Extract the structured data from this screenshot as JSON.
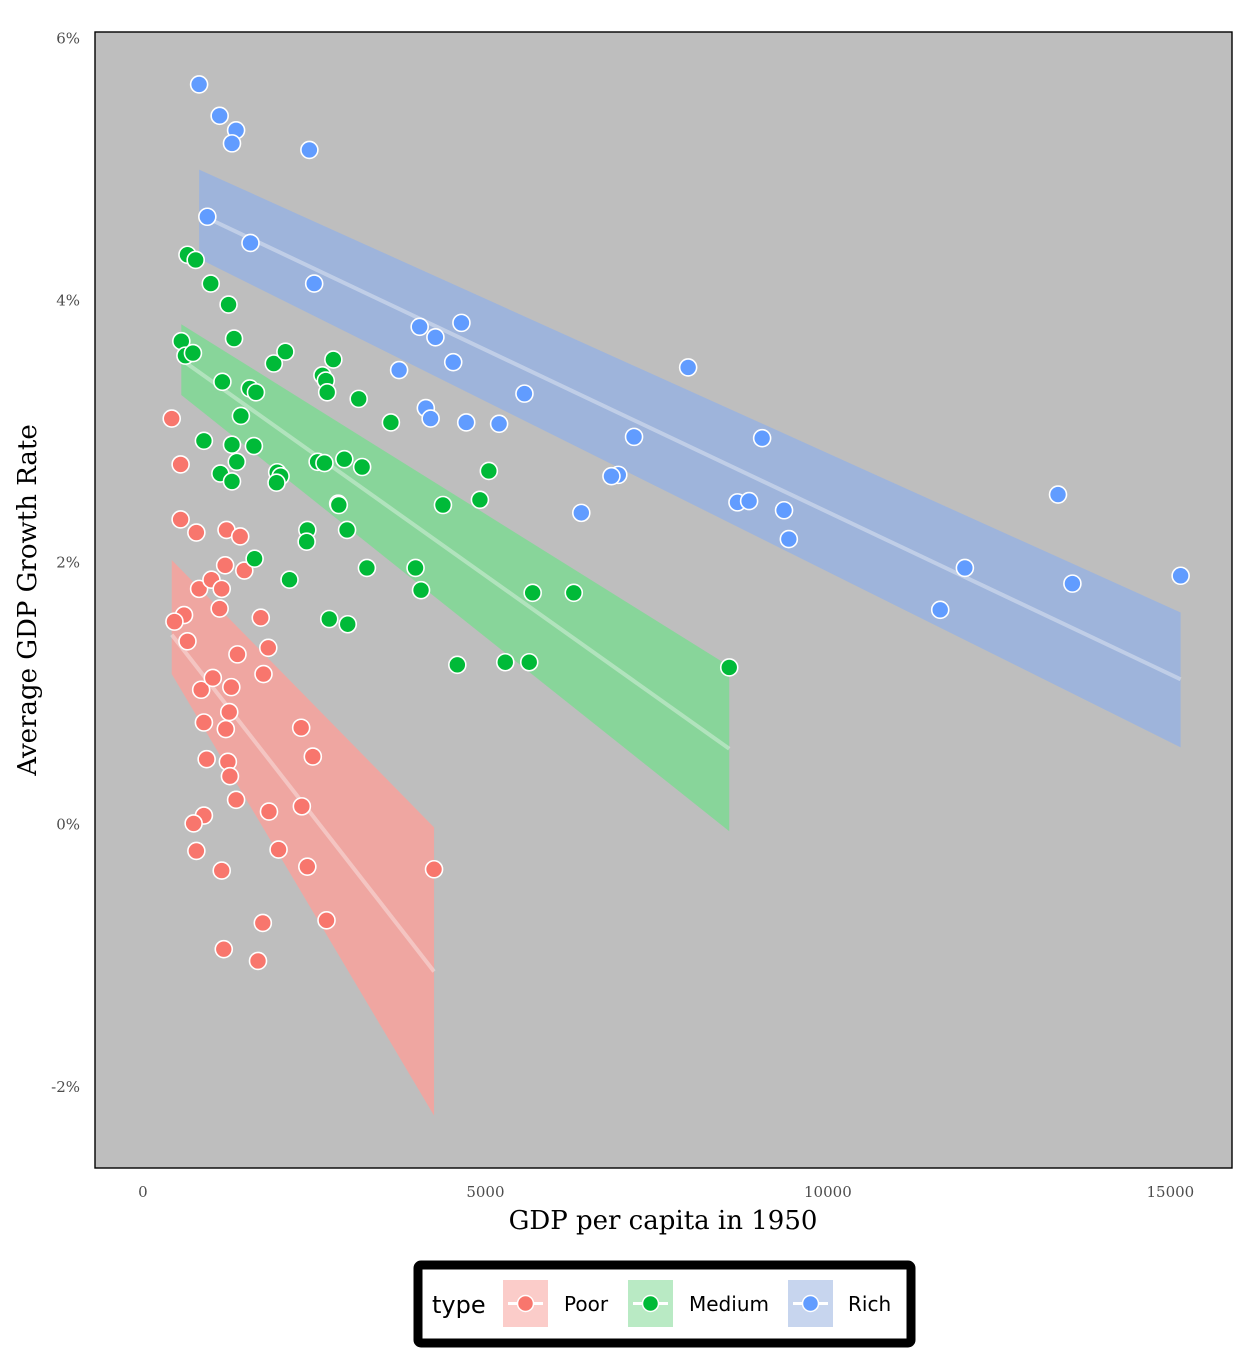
{
  "chart_data": {
    "type": "scatter",
    "title": "",
    "xlabel": "GDP per capita in 1950",
    "ylabel": "Average GDP Growth Rate",
    "xlim": [
      -700,
      15900
    ],
    "ylim": [
      -2.62,
      6.05
    ],
    "x_ticks": [
      0,
      5000,
      10000,
      15000
    ],
    "x_tick_labels": [
      "0",
      "5000",
      "10000",
      "15000"
    ],
    "y_ticks": [
      -2,
      0,
      2,
      4,
      6
    ],
    "y_tick_labels": [
      "-2%",
      "0%",
      "2%",
      "4%",
      "6%"
    ],
    "grid": false,
    "panel_background": "#bebebe",
    "legend": {
      "title": "type",
      "position": "bottom",
      "items": [
        "Poor",
        "Medium",
        "Rich"
      ]
    },
    "series": [
      {
        "name": "Poor",
        "color": "#f8766d",
        "fill_color": "#f8a29c",
        "points": [
          [
            420,
            3.1
          ],
          [
            550,
            2.75
          ],
          [
            550,
            2.33
          ],
          [
            600,
            1.6
          ],
          [
            460,
            1.55
          ],
          [
            650,
            1.4
          ],
          [
            780,
            2.23
          ],
          [
            820,
            1.8
          ],
          [
            1000,
            1.87
          ],
          [
            1150,
            1.8
          ],
          [
            1120,
            1.65
          ],
          [
            1200,
            1.98
          ],
          [
            1220,
            2.25
          ],
          [
            1420,
            2.2
          ],
          [
            1480,
            1.94
          ],
          [
            1720,
            1.58
          ],
          [
            1830,
            1.35
          ],
          [
            1760,
            1.15
          ],
          [
            1380,
            1.3
          ],
          [
            850,
            1.03
          ],
          [
            1020,
            1.12
          ],
          [
            1290,
            1.05
          ],
          [
            1260,
            0.86
          ],
          [
            1210,
            0.73
          ],
          [
            890,
            0.78
          ],
          [
            930,
            0.5
          ],
          [
            1240,
            0.48
          ],
          [
            1270,
            0.37
          ],
          [
            1360,
            0.19
          ],
          [
            1840,
            0.1
          ],
          [
            2310,
            0.74
          ],
          [
            2480,
            0.52
          ],
          [
            2320,
            0.14
          ],
          [
            890,
            0.07
          ],
          [
            740,
            0.01
          ],
          [
            780,
            -0.2
          ],
          [
            1980,
            -0.19
          ],
          [
            1150,
            -0.35
          ],
          [
            2400,
            -0.32
          ],
          [
            4250,
            -0.34
          ],
          [
            1750,
            -0.75
          ],
          [
            2680,
            -0.73
          ],
          [
            1180,
            -0.95
          ],
          [
            1680,
            -1.04
          ]
        ],
        "fit": {
          "x": [
            420,
            4250
          ],
          "y": [
            1.45,
            -1.12
          ],
          "ci_lower": [
            1.15,
            -2.22
          ],
          "ci_upper": [
            2.02,
            -0.02
          ]
        }
      },
      {
        "name": "Medium",
        "color": "#00ba38",
        "fill_color": "#7fd994",
        "points": [
          [
            650,
            4.35
          ],
          [
            770,
            4.31
          ],
          [
            990,
            4.13
          ],
          [
            1250,
            3.97
          ],
          [
            560,
            3.69
          ],
          [
            620,
            3.58
          ],
          [
            730,
            3.6
          ],
          [
            1330,
            3.71
          ],
          [
            1160,
            3.38
          ],
          [
            1430,
            3.12
          ],
          [
            1560,
            3.33
          ],
          [
            1650,
            3.3
          ],
          [
            1910,
            3.52
          ],
          [
            2080,
            3.61
          ],
          [
            2620,
            3.43
          ],
          [
            2670,
            3.39
          ],
          [
            2690,
            3.3
          ],
          [
            2780,
            3.55
          ],
          [
            3150,
            3.25
          ],
          [
            3620,
            3.07
          ],
          [
            890,
            2.93
          ],
          [
            1300,
            2.9
          ],
          [
            1620,
            2.89
          ],
          [
            1370,
            2.77
          ],
          [
            1130,
            2.68
          ],
          [
            1300,
            2.62
          ],
          [
            1960,
            2.69
          ],
          [
            2010,
            2.66
          ],
          [
            1950,
            2.61
          ],
          [
            2550,
            2.77
          ],
          [
            2650,
            2.76
          ],
          [
            2940,
            2.79
          ],
          [
            3200,
            2.73
          ],
          [
            5050,
            2.7
          ],
          [
            2850,
            2.45
          ],
          [
            2860,
            2.44
          ],
          [
            4920,
            2.48
          ],
          [
            4380,
            2.44
          ],
          [
            2980,
            2.25
          ],
          [
            2400,
            2.25
          ],
          [
            2390,
            2.16
          ],
          [
            1630,
            2.03
          ],
          [
            2140,
            1.87
          ],
          [
            3270,
            1.96
          ],
          [
            3980,
            1.96
          ],
          [
            4060,
            1.79
          ],
          [
            5690,
            1.77
          ],
          [
            6290,
            1.77
          ],
          [
            2720,
            1.57
          ],
          [
            2990,
            1.53
          ],
          [
            4590,
            1.22
          ],
          [
            5290,
            1.24
          ],
          [
            5640,
            1.24
          ],
          [
            8560,
            1.2
          ]
        ],
        "fit": {
          "x": [
            560,
            8560
          ],
          "y": [
            3.55,
            0.58
          ],
          "ci_lower": [
            3.28,
            -0.05
          ],
          "ci_upper": [
            3.82,
            1.21
          ]
        }
      },
      {
        "name": "Rich",
        "color": "#619cff",
        "fill_color": "#99b3e0",
        "points": [
          [
            820,
            5.65
          ],
          [
            1120,
            5.41
          ],
          [
            1360,
            5.3
          ],
          [
            1300,
            5.2
          ],
          [
            2430,
            5.15
          ],
          [
            940,
            4.64
          ],
          [
            1570,
            4.44
          ],
          [
            2500,
            4.13
          ],
          [
            4040,
            3.8
          ],
          [
            4650,
            3.83
          ],
          [
            4270,
            3.72
          ],
          [
            4530,
            3.53
          ],
          [
            3740,
            3.47
          ],
          [
            4130,
            3.18
          ],
          [
            4200,
            3.1
          ],
          [
            4720,
            3.07
          ],
          [
            5200,
            3.06
          ],
          [
            5570,
            3.29
          ],
          [
            7960,
            3.49
          ],
          [
            7170,
            2.96
          ],
          [
            6940,
            2.67
          ],
          [
            6840,
            2.66
          ],
          [
            9040,
            2.95
          ],
          [
            8680,
            2.46
          ],
          [
            8850,
            2.47
          ],
          [
            9360,
            2.4
          ],
          [
            9430,
            2.18
          ],
          [
            6400,
            2.38
          ],
          [
            13360,
            2.52
          ],
          [
            12000,
            1.96
          ],
          [
            11640,
            1.64
          ],
          [
            13570,
            1.84
          ],
          [
            15150,
            1.9
          ]
        ],
        "fit": {
          "x": [
            820,
            15150
          ],
          "y": [
            4.66,
            1.11
          ],
          "ci_lower": [
            4.32,
            0.59
          ],
          "ci_upper": [
            5.0,
            1.62
          ]
        }
      }
    ]
  }
}
